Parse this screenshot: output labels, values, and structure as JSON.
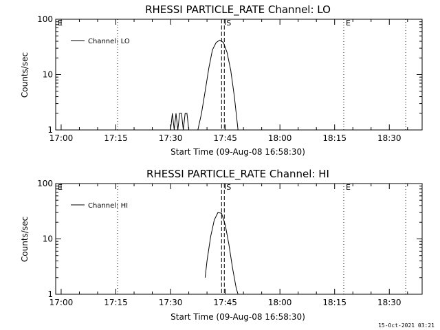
{
  "footer_timestamp": "15-Oct-2021 03:21",
  "chart_data": [
    {
      "type": "line",
      "title": "RHESSI PARTICLE_RATE Channel: LO",
      "xlabel": "Start Time (09-Aug-08 16:58:30)",
      "ylabel": "Counts/sec",
      "yscale": "log",
      "ylim": [
        1,
        100
      ],
      "y_ticks": [
        "1",
        "10",
        "100"
      ],
      "xlim": [
        "16:58:30",
        "18:39:00"
      ],
      "x_ticks": [
        "17:00",
        "17:15",
        "17:30",
        "17:45",
        "18:00",
        "18:15",
        "18:30"
      ],
      "legend": {
        "position": "top-left",
        "entries": [
          "Channel: LO"
        ]
      },
      "markers": [
        {
          "time": "16:58:30",
          "label": "E",
          "style": "dotted"
        },
        {
          "time": "17:15:30",
          "label": "",
          "style": "dotted"
        },
        {
          "time": "17:44:00",
          "label": "",
          "style": "dashed"
        },
        {
          "time": "17:44:45",
          "label": "S",
          "style": "dashed"
        },
        {
          "time": "18:17:30",
          "label": "E",
          "style": "dotted"
        },
        {
          "time": "18:34:30",
          "label": "",
          "style": "dotted"
        }
      ],
      "series": [
        {
          "name": "Channel: LO",
          "segments": [
            {
              "x": [
                "17:30:00",
                "17:30:30",
                "17:31:00",
                "17:31:30",
                "17:32:00",
                "17:32:30",
                "17:33:00",
                "17:33:30",
                "17:34:00",
                "17:34:30",
                "17:35:00"
              ],
              "y": [
                1,
                2,
                1,
                2,
                1,
                2,
                2,
                1,
                2,
                2,
                1
              ]
            },
            {
              "x": [
                "17:37:30",
                "17:38:30",
                "17:39:30",
                "17:40:30",
                "17:41:30",
                "17:42:30",
                "17:43:30",
                "17:44:30",
                "17:45:30",
                "17:46:30",
                "17:47:30",
                "17:48:30"
              ],
              "y": [
                1,
                2,
                5,
                13,
                28,
                38,
                42,
                38,
                25,
                12,
                4,
                1
              ]
            }
          ]
        }
      ]
    },
    {
      "type": "line",
      "title": "RHESSI PARTICLE_RATE Channel: HI",
      "xlabel": "Start Time (09-Aug-08 16:58:30)",
      "ylabel": "Counts/sec",
      "yscale": "log",
      "ylim": [
        1,
        100
      ],
      "y_ticks": [
        "1",
        "10",
        "100"
      ],
      "xlim": [
        "16:58:30",
        "18:39:00"
      ],
      "x_ticks": [
        "17:00",
        "17:15",
        "17:30",
        "17:45",
        "18:00",
        "18:15",
        "18:30"
      ],
      "legend": {
        "position": "top-left",
        "entries": [
          "Channel: HI"
        ]
      },
      "markers": [
        {
          "time": "16:58:30",
          "label": "E",
          "style": "dotted"
        },
        {
          "time": "17:15:30",
          "label": "",
          "style": "dotted"
        },
        {
          "time": "17:44:00",
          "label": "",
          "style": "dashed"
        },
        {
          "time": "17:44:45",
          "label": "S",
          "style": "dashed"
        },
        {
          "time": "18:17:30",
          "label": "E",
          "style": "dotted"
        },
        {
          "time": "18:34:30",
          "label": "",
          "style": "dotted"
        }
      ],
      "series": [
        {
          "name": "Channel: HI",
          "segments": [
            {
              "x": [
                "17:39:30",
                "17:40:00",
                "17:41:00",
                "17:42:00",
                "17:43:00",
                "17:44:00",
                "17:45:00",
                "17:46:00",
                "17:47:00",
                "17:48:00",
                "17:48:30"
              ],
              "y": [
                2,
                4,
                11,
                22,
                30,
                29,
                18,
                8,
                3,
                1.3,
                1
              ]
            }
          ]
        }
      ]
    }
  ]
}
